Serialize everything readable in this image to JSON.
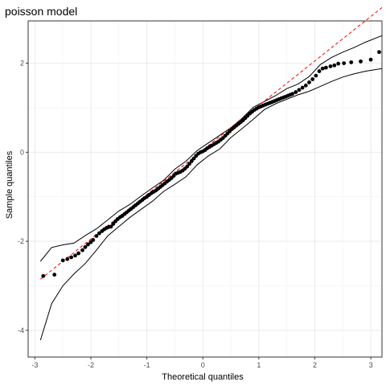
{
  "chart_data": {
    "type": "scatter",
    "title": "poisson model",
    "xlabel": "Theoretical quantiles",
    "ylabel": "Sample quantiles",
    "xlim": [
      -3.12,
      3.2
    ],
    "ylim": [
      -4.6,
      2.95
    ],
    "x_ticks": [
      -3,
      -2,
      -1,
      0,
      1,
      2,
      3
    ],
    "y_ticks": [
      -4,
      -2,
      0,
      2
    ],
    "x_tick_labels": [
      "-3",
      "-2",
      "-1",
      "0",
      "1",
      "2",
      "3"
    ],
    "y_tick_labels": [
      "-4",
      "-2",
      "0",
      "2"
    ],
    "grid": true,
    "reference_line": {
      "slope": 1.0,
      "intercept": 0.05,
      "x_range": [
        -2.9,
        3.2
      ],
      "color": "#ff0000",
      "style": "dashed"
    },
    "points_color": "#000000",
    "points": [
      [
        -2.85,
        -2.78
      ],
      [
        -2.65,
        -2.75
      ],
      [
        -2.5,
        -2.43
      ],
      [
        -2.42,
        -2.4
      ],
      [
        -2.35,
        -2.36
      ],
      [
        -2.28,
        -2.32
      ],
      [
        -2.22,
        -2.27
      ],
      [
        -2.15,
        -2.2
      ],
      [
        -2.1,
        -2.13
      ],
      [
        -2.05,
        -2.07
      ],
      [
        -2.0,
        -2.02
      ],
      [
        -1.96,
        -1.97
      ],
      [
        -1.9,
        -1.88
      ],
      [
        -1.85,
        -1.82
      ],
      [
        -1.8,
        -1.77
      ],
      [
        -1.76,
        -1.73
      ],
      [
        -1.72,
        -1.7
      ],
      [
        -1.68,
        -1.68
      ],
      [
        -1.64,
        -1.67
      ],
      [
        -1.6,
        -1.61
      ],
      [
        -1.56,
        -1.55
      ],
      [
        -1.52,
        -1.5
      ],
      [
        -1.48,
        -1.46
      ],
      [
        -1.44,
        -1.43
      ],
      [
        -1.4,
        -1.39
      ],
      [
        -1.36,
        -1.35
      ],
      [
        -1.32,
        -1.31
      ],
      [
        -1.28,
        -1.27
      ],
      [
        -1.24,
        -1.23
      ],
      [
        -1.2,
        -1.19
      ],
      [
        -1.16,
        -1.15
      ],
      [
        -1.12,
        -1.11
      ],
      [
        -1.08,
        -1.07
      ],
      [
        -1.04,
        -1.03
      ],
      [
        -1.0,
        -1.0
      ],
      [
        -0.96,
        -0.96
      ],
      [
        -0.92,
        -0.92
      ],
      [
        -0.88,
        -0.89
      ],
      [
        -0.84,
        -0.86
      ],
      [
        -0.8,
        -0.82
      ],
      [
        -0.76,
        -0.78
      ],
      [
        -0.72,
        -0.74
      ],
      [
        -0.68,
        -0.7
      ],
      [
        -0.64,
        -0.66
      ],
      [
        -0.6,
        -0.62
      ],
      [
        -0.56,
        -0.58
      ],
      [
        -0.52,
        -0.53
      ],
      [
        -0.48,
        -0.48
      ],
      [
        -0.44,
        -0.46
      ],
      [
        -0.4,
        -0.44
      ],
      [
        -0.36,
        -0.41
      ],
      [
        -0.32,
        -0.37
      ],
      [
        -0.28,
        -0.32
      ],
      [
        -0.24,
        -0.26
      ],
      [
        -0.2,
        -0.2
      ],
      [
        -0.16,
        -0.14
      ],
      [
        -0.12,
        -0.08
      ],
      [
        -0.08,
        -0.03
      ],
      [
        -0.04,
        0.0
      ],
      [
        0.0,
        0.02
      ],
      [
        0.04,
        0.05
      ],
      [
        0.08,
        0.09
      ],
      [
        0.12,
        0.12
      ],
      [
        0.16,
        0.15
      ],
      [
        0.2,
        0.18
      ],
      [
        0.24,
        0.21
      ],
      [
        0.28,
        0.24
      ],
      [
        0.32,
        0.28
      ],
      [
        0.36,
        0.32
      ],
      [
        0.4,
        0.37
      ],
      [
        0.44,
        0.42
      ],
      [
        0.48,
        0.47
      ],
      [
        0.52,
        0.52
      ],
      [
        0.56,
        0.56
      ],
      [
        0.6,
        0.6
      ],
      [
        0.64,
        0.64
      ],
      [
        0.68,
        0.68
      ],
      [
        0.72,
        0.72
      ],
      [
        0.76,
        0.77
      ],
      [
        0.8,
        0.82
      ],
      [
        0.84,
        0.87
      ],
      [
        0.88,
        0.91
      ],
      [
        0.92,
        0.95
      ],
      [
        0.96,
        0.98
      ],
      [
        1.0,
        1.01
      ],
      [
        1.04,
        1.03
      ],
      [
        1.08,
        1.05
      ],
      [
        1.12,
        1.07
      ],
      [
        1.16,
        1.09
      ],
      [
        1.2,
        1.11
      ],
      [
        1.24,
        1.13
      ],
      [
        1.28,
        1.15
      ],
      [
        1.32,
        1.17
      ],
      [
        1.36,
        1.19
      ],
      [
        1.4,
        1.21
      ],
      [
        1.44,
        1.23
      ],
      [
        1.48,
        1.25
      ],
      [
        1.52,
        1.27
      ],
      [
        1.56,
        1.29
      ],
      [
        1.6,
        1.31
      ],
      [
        1.66,
        1.35
      ],
      [
        1.72,
        1.4
      ],
      [
        1.78,
        1.45
      ],
      [
        1.84,
        1.5
      ],
      [
        1.9,
        1.57
      ],
      [
        1.96,
        1.64
      ],
      [
        2.02,
        1.72
      ],
      [
        2.08,
        1.82
      ],
      [
        2.14,
        1.88
      ],
      [
        2.2,
        1.9
      ],
      [
        2.28,
        1.93
      ],
      [
        2.35,
        1.95
      ],
      [
        2.42,
        1.99
      ],
      [
        2.52,
        2.0
      ],
      [
        2.65,
        2.02
      ],
      [
        2.82,
        2.04
      ],
      [
        3.0,
        2.08
      ],
      [
        3.15,
        2.25
      ]
    ],
    "upper_band": [
      [
        -2.9,
        -2.45
      ],
      [
        -2.7,
        -2.14
      ],
      [
        -2.5,
        -2.08
      ],
      [
        -2.3,
        -2.04
      ],
      [
        -2.1,
        -1.87
      ],
      [
        -1.9,
        -1.72
      ],
      [
        -1.7,
        -1.52
      ],
      [
        -1.5,
        -1.32
      ],
      [
        -1.3,
        -1.17
      ],
      [
        -1.1,
        -0.98
      ],
      [
        -0.9,
        -0.8
      ],
      [
        -0.7,
        -0.63
      ],
      [
        -0.5,
        -0.38
      ],
      [
        -0.3,
        -0.2
      ],
      [
        -0.1,
        0.04
      ],
      [
        0.1,
        0.21
      ],
      [
        0.3,
        0.38
      ],
      [
        0.5,
        0.55
      ],
      [
        0.7,
        0.76
      ],
      [
        0.9,
        1.01
      ],
      [
        1.1,
        1.14
      ],
      [
        1.3,
        1.27
      ],
      [
        1.5,
        1.43
      ],
      [
        1.7,
        1.53
      ],
      [
        1.9,
        1.7
      ],
      [
        2.1,
        1.97
      ],
      [
        2.3,
        2.13
      ],
      [
        2.5,
        2.25
      ],
      [
        2.7,
        2.35
      ],
      [
        2.9,
        2.47
      ],
      [
        3.2,
        2.62
      ]
    ],
    "lower_band": [
      [
        -2.9,
        -4.22
      ],
      [
        -2.7,
        -3.4
      ],
      [
        -2.5,
        -3.0
      ],
      [
        -2.3,
        -2.73
      ],
      [
        -2.1,
        -2.5
      ],
      [
        -1.9,
        -2.2
      ],
      [
        -1.7,
        -1.88
      ],
      [
        -1.5,
        -1.67
      ],
      [
        -1.3,
        -1.46
      ],
      [
        -1.1,
        -1.28
      ],
      [
        -0.9,
        -1.1
      ],
      [
        -0.7,
        -0.88
      ],
      [
        -0.5,
        -0.72
      ],
      [
        -0.3,
        -0.55
      ],
      [
        -0.1,
        -0.28
      ],
      [
        0.1,
        -0.08
      ],
      [
        0.3,
        0.07
      ],
      [
        0.5,
        0.33
      ],
      [
        0.7,
        0.53
      ],
      [
        0.9,
        0.74
      ],
      [
        1.1,
        0.96
      ],
      [
        1.3,
        1.09
      ],
      [
        1.5,
        1.19
      ],
      [
        1.7,
        1.29
      ],
      [
        1.9,
        1.37
      ],
      [
        2.1,
        1.48
      ],
      [
        2.3,
        1.59
      ],
      [
        2.5,
        1.69
      ],
      [
        2.7,
        1.76
      ],
      [
        2.9,
        1.82
      ],
      [
        3.2,
        1.88
      ]
    ]
  }
}
